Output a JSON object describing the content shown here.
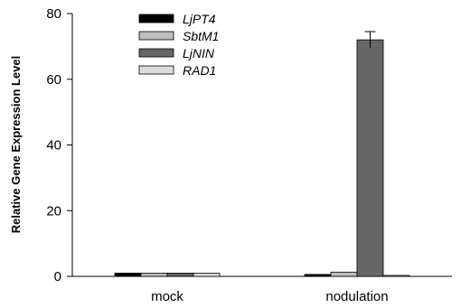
{
  "chart_data": {
    "type": "bar",
    "categories": [
      "mock",
      "nodulation"
    ],
    "series": [
      {
        "name": "LjPT4",
        "values": [
          1.0,
          0.6
        ],
        "color": "#000000"
      },
      {
        "name": "SbtM1",
        "values": [
          1.0,
          1.3
        ],
        "color": "#bdbdbd"
      },
      {
        "name": "LjNIN",
        "values": [
          1.0,
          72.0
        ],
        "color": "#666666"
      },
      {
        "name": "RAD1",
        "values": [
          1.0,
          0.3
        ],
        "color": "#dcdcdc"
      }
    ],
    "error_bars": [
      [
        0,
        0
      ],
      [
        0,
        0.1
      ],
      [
        0,
        2.5
      ],
      [
        0,
        0
      ]
    ],
    "ylabel": "Relative Gene Expression Level",
    "xlabel": "",
    "ylim": [
      0,
      80
    ],
    "yticks": [
      "0",
      "20",
      "40",
      "60",
      "80"
    ],
    "legend_position": "top-left",
    "grid": false
  }
}
